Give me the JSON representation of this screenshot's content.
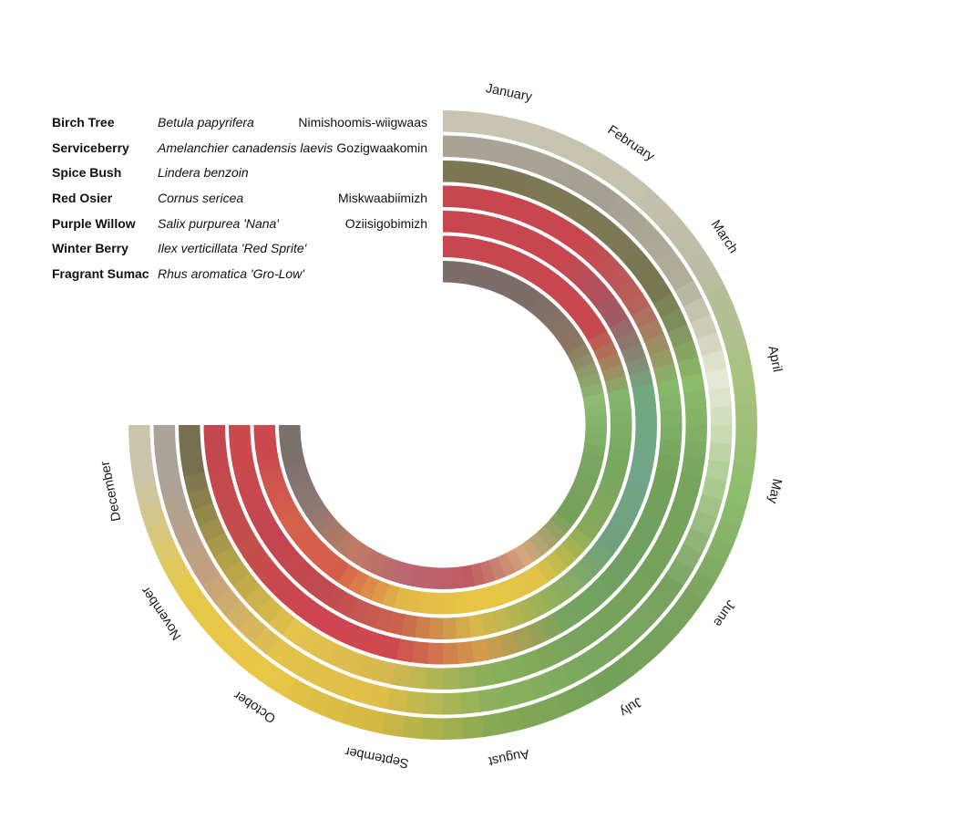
{
  "chart_data": {
    "type": "radial-band",
    "months": [
      "January",
      "February",
      "March",
      "April",
      "May",
      "June",
      "July",
      "August",
      "September",
      "October",
      "November",
      "December"
    ],
    "series": [
      {
        "name": "Birch Tree",
        "latin": "Betula papyrifera",
        "ojibwe": "Nimishoomis-wiigwaas",
        "colors": [
          "#c7c4b1",
          "#c5c2ad",
          "#bdbca4",
          "#a9c280",
          "#8fbc6e",
          "#7aa25c",
          "#74a05a",
          "#86a953",
          "#d4b844",
          "#e8c646",
          "#e4c84c",
          "#c9c5ad"
        ]
      },
      {
        "name": "Serviceberry",
        "latin": "Amelanchier canadensis laevis",
        "ojibwe": "Gozigwaakomin",
        "colors": [
          "#a9a396",
          "#a59f92",
          "#b0ae98",
          "#e7e9d6",
          "#aac98e",
          "#78a160",
          "#7aa75e",
          "#8bb15c",
          "#dfbd48",
          "#e2c24a",
          "#c29f7f",
          "#a9a399"
        ]
      },
      {
        "name": "Spice Bush",
        "latin": "Lindera benzoin",
        "ojibwe": "",
        "colors": [
          "#7b7754",
          "#7d7956",
          "#797653",
          "#8cbb6b",
          "#77a35d",
          "#74a05a",
          "#78a35c",
          "#8ab05a",
          "#d8b850",
          "#e4c24c",
          "#b2a04a",
          "#77704f"
        ]
      },
      {
        "name": "Red Osier",
        "latin": "Cornus sericea",
        "ojibwe": "Miskwaabiimizh",
        "colors": [
          "#c8464f",
          "#c8464f",
          "#b6625c",
          "#86b86b",
          "#74a05a",
          "#6f9f61",
          "#76a45e",
          "#d39b4c",
          "#cf4a4f",
          "#cc4450",
          "#c3504b",
          "#c4474f"
        ]
      },
      {
        "name": "Purple Willow",
        "latin": "Salix purpurea 'Nana'",
        "ojibwe": "Oziisigobimizh",
        "colors": [
          "#c8464f",
          "#c7464f",
          "#a15a64",
          "#6fab7c",
          "#72a58a",
          "#6ea07b",
          "#93b05a",
          "#d6b74a",
          "#c9624f",
          "#c14a50",
          "#c24552",
          "#cc4a4e"
        ]
      },
      {
        "name": "Winter Berry",
        "latin": "Ilex verticillata 'Red Sprite'",
        "ojibwe": "",
        "colors": [
          "#c8464f",
          "#c8464f",
          "#c64a4d",
          "#83b56d",
          "#78a65f",
          "#86aa5b",
          "#e2c347",
          "#e8c445",
          "#e2b847",
          "#d55e4a",
          "#d3614c",
          "#cc4a4e"
        ]
      },
      {
        "name": "Fragrant Sumac",
        "latin": "Rhus aromatica 'Gro-Low'",
        "ojibwe": "",
        "colors": [
          "#7a6d6a",
          "#7b6e69",
          "#8a7560",
          "#8dbc72",
          "#7aa562",
          "#74a05a",
          "#d4a67c",
          "#c05a62",
          "#bb6670",
          "#c07a64",
          "#8c7774",
          "#7a706c"
        ]
      }
    ]
  }
}
